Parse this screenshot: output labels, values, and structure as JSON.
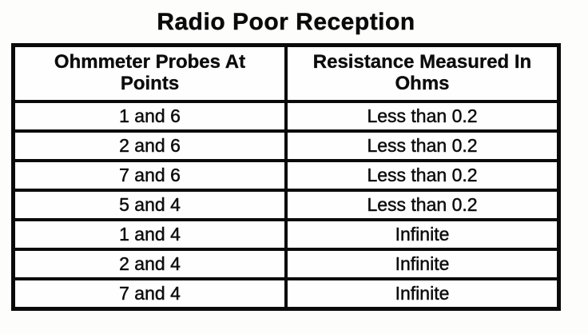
{
  "title": "Radio Poor Reception",
  "colors": {
    "ink": "#0a0a0a",
    "paper": "#fdfdfc"
  },
  "table": {
    "headers": [
      {
        "line1": "Ohmmeter Probes At",
        "line2": "Points"
      },
      {
        "line1": "Resistance Measured In",
        "line2": "Ohms"
      }
    ],
    "rows": [
      {
        "probes": "1 and 6",
        "resistance": "Less than 0.2"
      },
      {
        "probes": "2 and 6",
        "resistance": "Less than 0.2"
      },
      {
        "probes": "7 and 6",
        "resistance": "Less than 0.2"
      },
      {
        "probes": "5 and 4",
        "resistance": "Less than 0.2"
      },
      {
        "probes": "1 and 4",
        "resistance": "Infinite"
      },
      {
        "probes": "2 and 4",
        "resistance": "Infinite"
      },
      {
        "probes": "7 and 4",
        "resistance": "Infinite"
      }
    ]
  }
}
